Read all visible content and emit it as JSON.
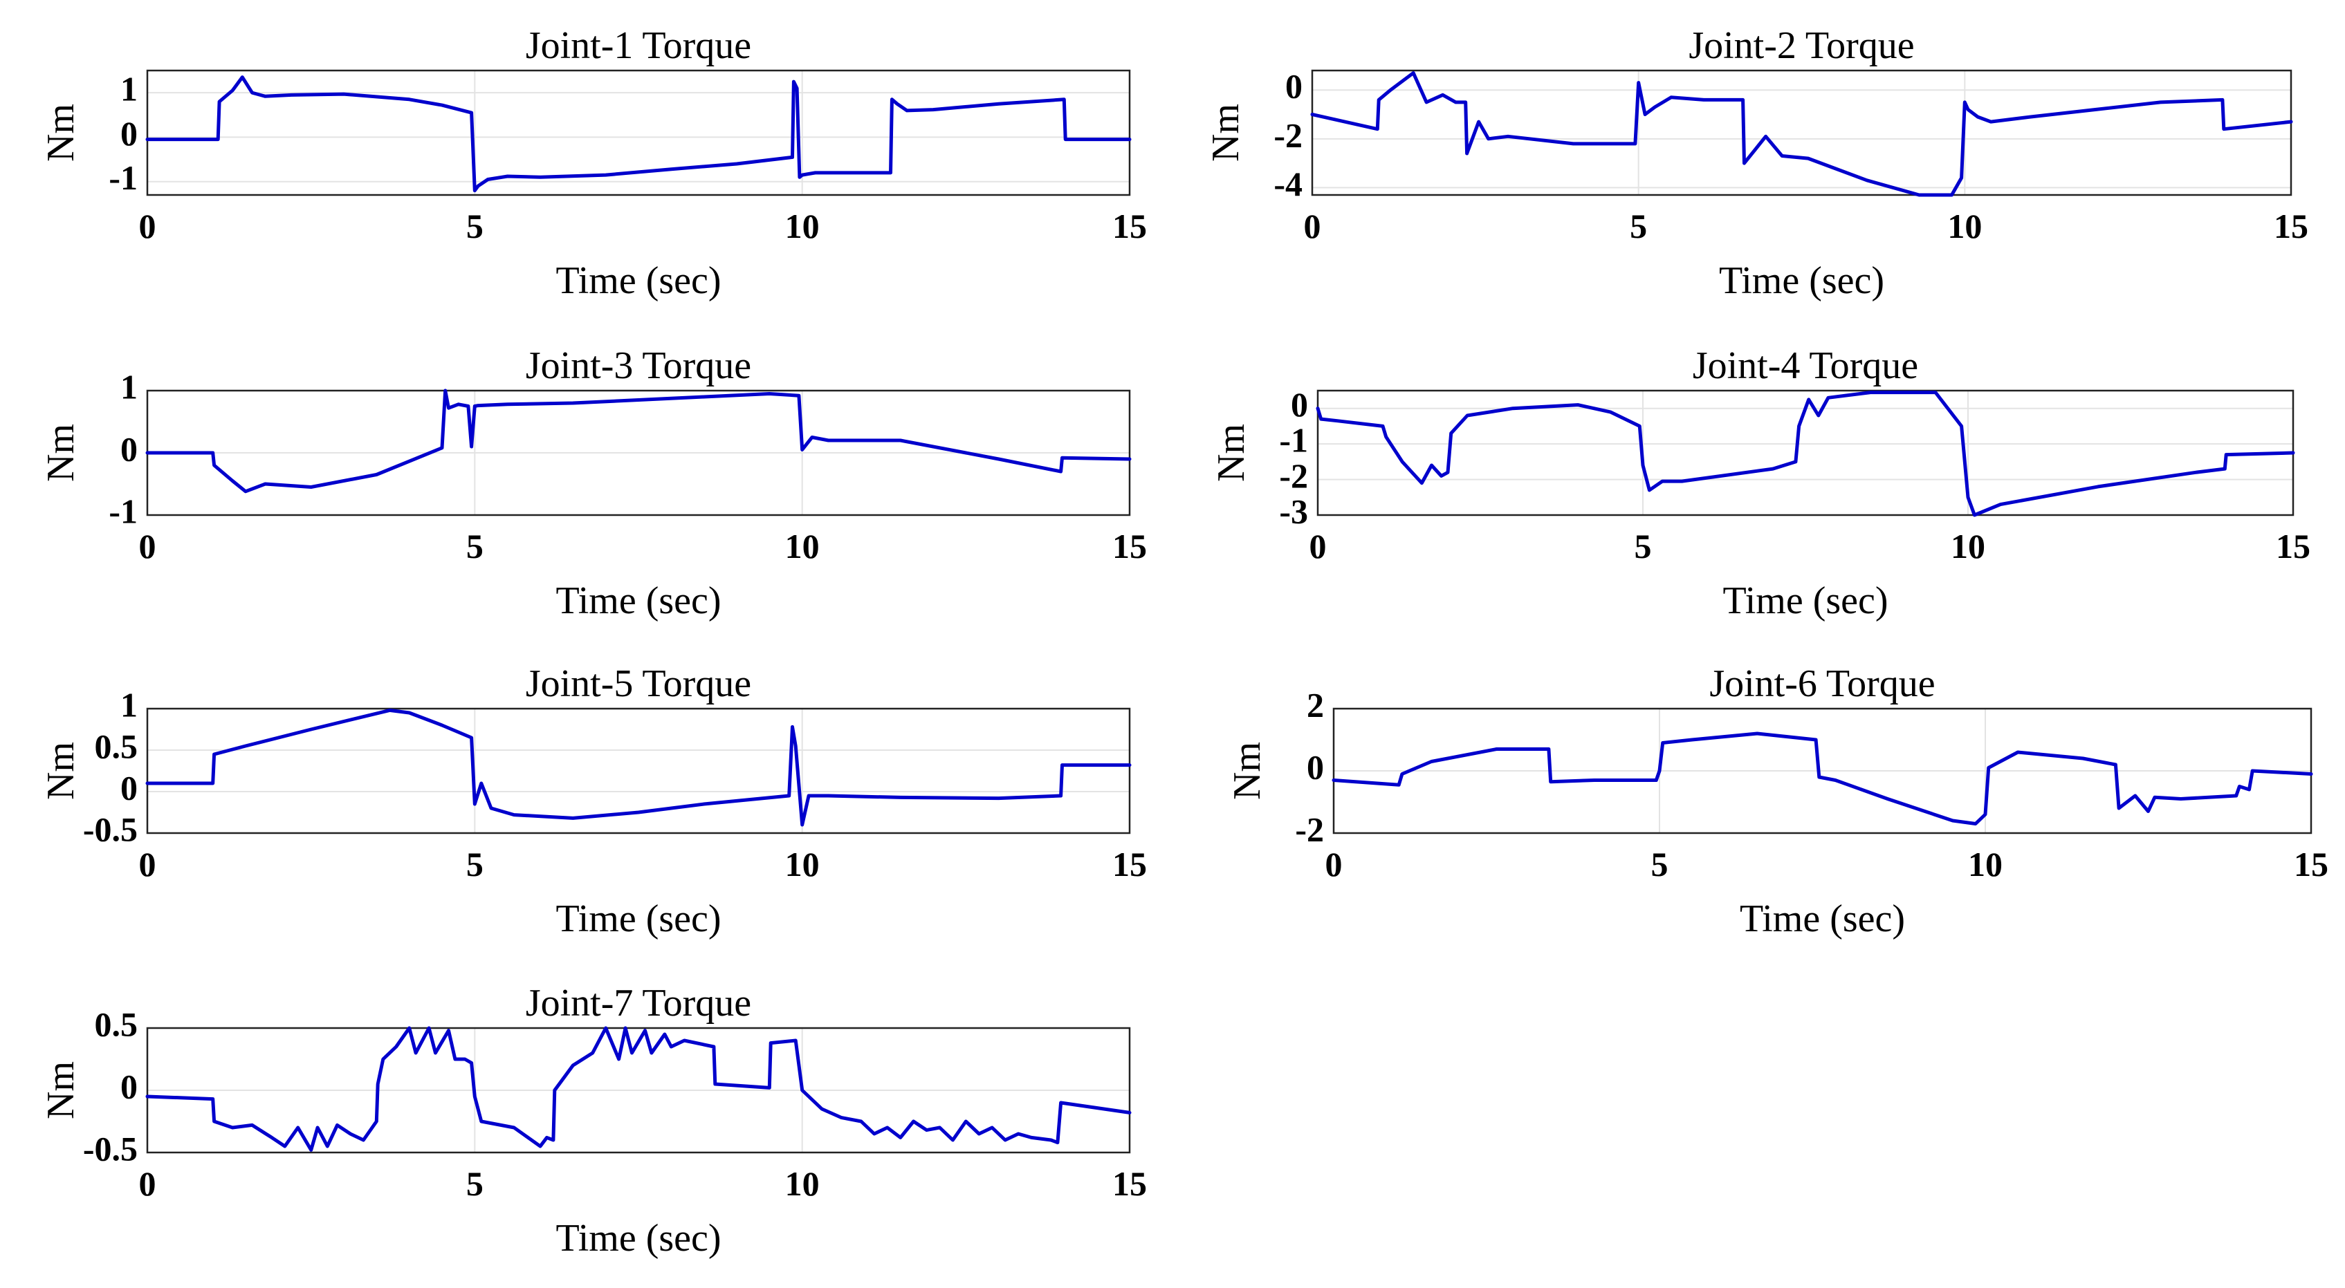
{
  "chart_data": [
    {
      "type": "line",
      "title": "Joint-1 Torque",
      "xlabel": "Time (sec)",
      "ylabel": "Nm",
      "xlim": [
        0,
        15
      ],
      "ylim": [
        -1.3,
        1.5
      ],
      "xticks": [
        0,
        5,
        10,
        15
      ],
      "yticks": [
        -1,
        0,
        1
      ],
      "ytick_labels": [
        "-1",
        "0",
        "1"
      ],
      "grid": true,
      "series": [
        {
          "name": "Joint-1 Torque",
          "color": "#0000cc",
          "x": [
            0,
            1.08,
            1.1,
            1.3,
            1.45,
            1.6,
            1.8,
            2.2,
            3.0,
            4.0,
            4.5,
            4.95,
            5.0,
            5.05,
            5.2,
            5.5,
            6.0,
            7.0,
            8.0,
            9.0,
            9.85,
            9.87,
            9.92,
            9.96,
            10.0,
            10.2,
            10.5,
            11.0,
            11.35,
            11.37,
            11.45,
            11.6,
            12.0,
            13.0,
            14.0,
            14.02,
            15.0
          ],
          "y": [
            -0.05,
            -0.05,
            0.8,
            1.05,
            1.35,
            1.0,
            0.92,
            0.95,
            0.97,
            0.85,
            0.72,
            0.55,
            -1.2,
            -1.1,
            -0.95,
            -0.88,
            -0.9,
            -0.85,
            -0.72,
            -0.6,
            -0.45,
            1.25,
            1.1,
            -0.9,
            -0.85,
            -0.8,
            -0.8,
            -0.8,
            -0.8,
            0.85,
            0.75,
            0.6,
            0.62,
            0.75,
            0.85,
            -0.05,
            -0.05
          ]
        }
      ]
    },
    {
      "type": "line",
      "title": "Joint-2 Torque",
      "xlabel": "Time (sec)",
      "ylabel": "Nm",
      "xlim": [
        0,
        15
      ],
      "ylim": [
        -4.3,
        0.8
      ],
      "xticks": [
        0,
        5,
        10,
        15
      ],
      "yticks": [
        -4,
        -2,
        0
      ],
      "ytick_labels": [
        "-4",
        "-2",
        "0"
      ],
      "grid": true,
      "series": [
        {
          "name": "Joint-2 Torque",
          "color": "#0000cc",
          "x": [
            0,
            1.0,
            1.02,
            1.2,
            1.55,
            1.75,
            2.0,
            2.2,
            2.35,
            2.37,
            2.55,
            2.7,
            3.0,
            4.0,
            4.95,
            5.0,
            5.1,
            5.25,
            5.5,
            6.0,
            6.6,
            6.62,
            6.8,
            6.95,
            7.2,
            7.6,
            8.5,
            9.3,
            9.8,
            9.95,
            10.0,
            10.05,
            10.2,
            10.4,
            11.0,
            12.0,
            13.0,
            13.95,
            13.97,
            15.0
          ],
          "y": [
            -1.0,
            -1.6,
            -0.4,
            0.0,
            0.7,
            -0.5,
            -0.2,
            -0.5,
            -0.5,
            -2.6,
            -1.3,
            -2.0,
            -1.9,
            -2.2,
            -2.2,
            0.3,
            -1.0,
            -0.7,
            -0.3,
            -0.4,
            -0.4,
            -3.0,
            -2.4,
            -1.9,
            -2.7,
            -2.8,
            -3.7,
            -4.3,
            -4.3,
            -3.6,
            -0.5,
            -0.8,
            -1.1,
            -1.3,
            -1.1,
            -0.8,
            -0.5,
            -0.4,
            -1.6,
            -1.3
          ]
        }
      ]
    },
    {
      "type": "line",
      "title": "Joint-3 Torque",
      "xlabel": "Time (sec)",
      "ylabel": "Nm",
      "xlim": [
        0,
        15
      ],
      "ylim": [
        -1,
        1
      ],
      "xticks": [
        0,
        5,
        10,
        15
      ],
      "yticks": [
        -1,
        0,
        1
      ],
      "ytick_labels": [
        "-1",
        "0",
        "1"
      ],
      "grid": true,
      "series": [
        {
          "name": "Joint-3 Torque",
          "color": "#0000cc",
          "x": [
            0,
            1.0,
            1.02,
            1.3,
            1.5,
            1.8,
            2.5,
            3.5,
            4.5,
            4.55,
            4.6,
            4.75,
            4.9,
            4.95,
            5.0,
            5.05,
            5.5,
            6.5,
            7.5,
            8.5,
            9.5,
            9.95,
            10.0,
            10.15,
            10.4,
            11.5,
            13.0,
            13.95,
            13.97,
            15.0
          ],
          "y": [
            0.0,
            0.0,
            -0.2,
            -0.45,
            -0.62,
            -0.5,
            -0.55,
            -0.35,
            0.08,
            1.0,
            0.72,
            0.78,
            0.75,
            0.1,
            0.75,
            0.76,
            0.78,
            0.8,
            0.85,
            0.9,
            0.95,
            0.92,
            0.05,
            0.25,
            0.2,
            0.2,
            -0.1,
            -0.3,
            -0.08,
            -0.1
          ]
        }
      ]
    },
    {
      "type": "line",
      "title": "Joint-4 Torque",
      "xlabel": "Time (sec)",
      "ylabel": "Nm",
      "xlim": [
        0,
        15
      ],
      "ylim": [
        -3,
        0.5
      ],
      "xticks": [
        0,
        5,
        10,
        15
      ],
      "yticks": [
        -3,
        -2,
        -1,
        0
      ],
      "ytick_labels": [
        "-3",
        "-2",
        "-1",
        "0"
      ],
      "grid": true,
      "series": [
        {
          "name": "Joint-4 Torque",
          "color": "#0000cc",
          "x": [
            0,
            0.05,
            0.3,
            1.0,
            1.05,
            1.3,
            1.6,
            1.75,
            1.9,
            2.0,
            2.05,
            2.3,
            3.0,
            4.0,
            4.5,
            4.95,
            5.0,
            5.1,
            5.3,
            5.6,
            7.0,
            7.35,
            7.4,
            7.55,
            7.7,
            7.85,
            8.5,
            9.5,
            9.9,
            10.0,
            10.1,
            10.5,
            12.0,
            13.5,
            13.95,
            13.97,
            15.0
          ],
          "y": [
            0.0,
            -0.3,
            -0.35,
            -0.5,
            -0.8,
            -1.5,
            -2.1,
            -1.6,
            -1.9,
            -1.8,
            -0.7,
            -0.2,
            0.0,
            0.1,
            -0.1,
            -0.5,
            -1.6,
            -2.3,
            -2.05,
            -2.05,
            -1.7,
            -1.5,
            -0.5,
            0.25,
            -0.2,
            0.3,
            0.45,
            0.45,
            -0.5,
            -2.5,
            -3.0,
            -2.7,
            -2.2,
            -1.8,
            -1.7,
            -1.3,
            -1.25
          ]
        }
      ]
    },
    {
      "type": "line",
      "title": "Joint-5 Torque",
      "xlabel": "Time (sec)",
      "ylabel": "Nm",
      "xlim": [
        0,
        15
      ],
      "ylim": [
        -0.5,
        1
      ],
      "xticks": [
        0,
        5,
        10,
        15
      ],
      "yticks": [
        -0.5,
        0,
        0.5,
        1
      ],
      "ytick_labels": [
        "-0.5",
        "0",
        "0.5",
        "1"
      ],
      "grid": true,
      "series": [
        {
          "name": "Joint-5 Torque",
          "color": "#0000cc",
          "x": [
            0,
            1.0,
            1.02,
            1.5,
            2.5,
            3.7,
            4.0,
            4.5,
            4.95,
            5.0,
            5.1,
            5.25,
            5.6,
            6.5,
            7.5,
            8.5,
            9.8,
            9.85,
            9.9,
            10.0,
            10.1,
            10.4,
            11.5,
            13.0,
            13.95,
            13.97,
            15.0
          ],
          "y": [
            0.1,
            0.1,
            0.45,
            0.55,
            0.75,
            0.98,
            0.95,
            0.8,
            0.65,
            -0.15,
            0.1,
            -0.2,
            -0.28,
            -0.32,
            -0.25,
            -0.15,
            -0.05,
            0.78,
            0.55,
            -0.4,
            -0.05,
            -0.05,
            -0.07,
            -0.08,
            -0.05,
            0.32,
            0.32
          ]
        }
      ]
    },
    {
      "type": "line",
      "title": "Joint-6 Torque",
      "xlabel": "Time (sec)",
      "ylabel": "Nm",
      "xlim": [
        0,
        15
      ],
      "ylim": [
        -2,
        2
      ],
      "xticks": [
        0,
        5,
        10,
        15
      ],
      "yticks": [
        -2,
        0,
        2
      ],
      "ytick_labels": [
        "-2",
        "0",
        "2"
      ],
      "grid": true,
      "series": [
        {
          "name": "Joint-6 Torque",
          "color": "#0000cc",
          "x": [
            0,
            1.0,
            1.05,
            1.5,
            2.5,
            3.3,
            3.33,
            4.0,
            4.95,
            5.0,
            5.05,
            5.5,
            6.5,
            7.4,
            7.45,
            7.7,
            8.5,
            9.5,
            9.85,
            10.0,
            10.05,
            10.5,
            11.5,
            12.0,
            12.05,
            12.3,
            12.5,
            12.6,
            13.0,
            13.85,
            13.9,
            14.05,
            14.1,
            15.0
          ],
          "y": [
            -0.3,
            -0.45,
            -0.1,
            0.3,
            0.7,
            0.7,
            -0.35,
            -0.3,
            -0.3,
            0.0,
            0.9,
            1.0,
            1.2,
            1.0,
            -0.2,
            -0.3,
            -0.9,
            -1.6,
            -1.7,
            -1.4,
            0.1,
            0.6,
            0.4,
            0.2,
            -1.2,
            -0.8,
            -1.3,
            -0.85,
            -0.9,
            -0.8,
            -0.5,
            -0.6,
            0.0,
            -0.1
          ]
        }
      ]
    },
    {
      "type": "line",
      "title": "Joint-7 Torque",
      "xlabel": "Time (sec)",
      "ylabel": "Nm",
      "xlim": [
        0,
        15
      ],
      "ylim": [
        -0.5,
        0.5
      ],
      "xticks": [
        0,
        5,
        10,
        15
      ],
      "yticks": [
        -0.5,
        0,
        0.5
      ],
      "ytick_labels": [
        "-0.5",
        "0",
        "0.5"
      ],
      "grid": true,
      "series": [
        {
          "name": "Joint-7 Torque",
          "color": "#0000cc",
          "x": [
            0,
            1.0,
            1.02,
            1.3,
            1.6,
            1.9,
            2.1,
            2.3,
            2.5,
            2.6,
            2.75,
            2.9,
            3.1,
            3.3,
            3.5,
            3.52,
            3.6,
            3.8,
            4.0,
            4.1,
            4.3,
            4.4,
            4.6,
            4.7,
            4.85,
            4.95,
            5.0,
            5.1,
            5.6,
            6.0,
            6.1,
            6.2,
            6.22,
            6.5,
            6.8,
            7.0,
            7.2,
            7.3,
            7.4,
            7.6,
            7.7,
            7.9,
            8.0,
            8.2,
            8.65,
            8.67,
            9.5,
            9.52,
            9.9,
            10.0,
            10.3,
            10.6,
            10.9,
            11.1,
            11.3,
            11.5,
            11.7,
            11.9,
            12.1,
            12.3,
            12.5,
            12.7,
            12.9,
            13.1,
            13.3,
            13.5,
            13.8,
            13.9,
            13.95,
            15.0
          ],
          "y": [
            -0.05,
            -0.07,
            -0.25,
            -0.3,
            -0.28,
            -0.38,
            -0.45,
            -0.3,
            -0.48,
            -0.3,
            -0.45,
            -0.28,
            -0.35,
            -0.4,
            -0.25,
            0.05,
            0.25,
            0.35,
            0.5,
            0.3,
            0.5,
            0.3,
            0.48,
            0.25,
            0.25,
            0.22,
            -0.05,
            -0.25,
            -0.3,
            -0.45,
            -0.38,
            -0.4,
            0.0,
            0.2,
            0.3,
            0.5,
            0.25,
            0.5,
            0.3,
            0.48,
            0.3,
            0.45,
            0.35,
            0.4,
            0.35,
            0.05,
            0.02,
            0.38,
            0.4,
            0.0,
            -0.15,
            -0.22,
            -0.25,
            -0.35,
            -0.3,
            -0.38,
            -0.25,
            -0.32,
            -0.3,
            -0.4,
            -0.25,
            -0.35,
            -0.3,
            -0.4,
            -0.35,
            -0.38,
            -0.4,
            -0.42,
            -0.1,
            -0.18
          ]
        }
      ]
    }
  ]
}
